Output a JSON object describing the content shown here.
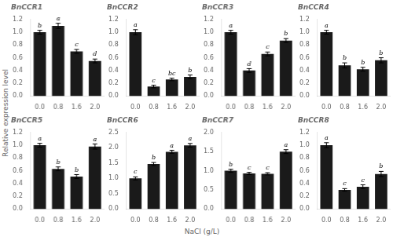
{
  "ylabel": "Relative expression level",
  "xlabel": "NaCl (g/L)",
  "chart_data": [
    {
      "type": "bar",
      "title": "BnCCR1",
      "categories": [
        "0.0",
        "0.8",
        "1.6",
        "2.0"
      ],
      "color": "#1a1a1a",
      "values": [
        1.0,
        1.1,
        0.7,
        0.55
      ],
      "errors": [
        0.03,
        0.04,
        0.03,
        0.03
      ],
      "annotations": [
        "b",
        "a",
        "c",
        "d"
      ],
      "ylim": [
        0,
        1.2
      ],
      "yticks": [
        {
          "value": 0,
          "label": "0.0"
        },
        0.2,
        0.4,
        0.6,
        0.8,
        {
          "value": 1,
          "label": "1.0"
        },
        1.2
      ],
      "grid": false
    },
    {
      "type": "bar",
      "title": "BnCCR2",
      "categories": [
        "0.0",
        "0.8",
        "1.6",
        "2.0"
      ],
      "color": "#1a1a1a",
      "values": [
        1.0,
        0.15,
        0.26,
        0.3
      ],
      "errors": [
        0.04,
        0.02,
        0.02,
        0.03
      ],
      "annotations": [
        "a",
        "c",
        "bc",
        "b"
      ],
      "ylim": [
        0,
        1.2
      ],
      "yticks": [
        {
          "value": 0,
          "label": "0.0"
        },
        0.2,
        0.4,
        0.6,
        0.8,
        {
          "value": 1,
          "label": "1.0"
        },
        1.2
      ],
      "grid": false
    },
    {
      "type": "bar",
      "title": "BnCCR3",
      "categories": [
        "0.0",
        "0.8",
        "1.6",
        "2.0"
      ],
      "color": "#1a1a1a",
      "values": [
        1.0,
        0.4,
        0.66,
        0.87
      ],
      "errors": [
        0.03,
        0.03,
        0.03,
        0.03
      ],
      "annotations": [
        "a",
        "d",
        "c",
        "b"
      ],
      "ylim": [
        0,
        1.2
      ],
      "yticks": [
        {
          "value": 0,
          "label": "0.0"
        },
        0.2,
        0.4,
        0.6,
        0.8,
        {
          "value": 1,
          "label": "1.0"
        },
        1.2
      ],
      "grid": false
    },
    {
      "type": "bar",
      "title": "BnCCR4",
      "categories": [
        "0.0",
        "0.8",
        "1.6",
        "2.0"
      ],
      "color": "#1a1a1a",
      "values": [
        1.0,
        0.48,
        0.42,
        0.56
      ],
      "errors": [
        0.03,
        0.04,
        0.03,
        0.04
      ],
      "annotations": [
        "a",
        "b",
        "b",
        "b"
      ],
      "ylim": [
        0,
        1.2
      ],
      "yticks": [
        {
          "value": 0,
          "label": "0.0"
        },
        0.2,
        0.4,
        0.6,
        0.8,
        {
          "value": 1,
          "label": "1.0"
        },
        1.2
      ],
      "grid": false
    },
    {
      "type": "bar",
      "title": "BnCCR5",
      "categories": [
        "0.0",
        "0.8",
        "1.6",
        "2.0"
      ],
      "color": "#1a1a1a",
      "values": [
        1.0,
        0.63,
        0.51,
        0.98
      ],
      "errors": [
        0.03,
        0.03,
        0.03,
        0.04
      ],
      "annotations": [
        "a",
        "b",
        "b",
        "a"
      ],
      "ylim": [
        0,
        1.2
      ],
      "yticks": [
        {
          "value": 0,
          "label": "0.0"
        },
        0.2,
        0.4,
        0.6,
        0.8,
        {
          "value": 1,
          "label": "1.0"
        },
        1.2
      ],
      "grid": false
    },
    {
      "type": "bar",
      "title": "BnCCR6",
      "categories": [
        "0.0",
        "0.8",
        "1.6",
        "2.0"
      ],
      "color": "#1a1a1a",
      "values": [
        1.0,
        1.47,
        1.87,
        2.08
      ],
      "errors": [
        0.05,
        0.05,
        0.05,
        0.06
      ],
      "annotations": [
        "c",
        "b",
        "a",
        "a"
      ],
      "ylim": [
        0,
        2.5
      ],
      "yticks": [
        {
          "value": 0,
          "label": "0.0"
        },
        0.5,
        {
          "value": 1,
          "label": "1.0"
        },
        1.5,
        {
          "value": 2,
          "label": "2.0"
        },
        2.5
      ],
      "grid": false
    },
    {
      "type": "bar",
      "title": "BnCCR7",
      "categories": [
        "0.0",
        "0.8",
        "1.6",
        "2.0"
      ],
      "color": "#1a1a1a",
      "values": [
        1.0,
        0.93,
        0.92,
        1.5
      ],
      "errors": [
        0.04,
        0.03,
        0.03,
        0.05
      ],
      "annotations": [
        "b",
        "c",
        "c",
        "a"
      ],
      "ylim": [
        0,
        2.0
      ],
      "yticks": [
        {
          "value": 0,
          "label": "0.0"
        },
        0.5,
        {
          "value": 1,
          "label": "1.0"
        },
        1.5,
        {
          "value": 2,
          "label": "2.0"
        }
      ],
      "grid": false
    },
    {
      "type": "bar",
      "title": "BnCCR8",
      "categories": [
        "0.0",
        "0.8",
        "1.6",
        "2.0"
      ],
      "color": "#1a1a1a",
      "values": [
        1.0,
        0.3,
        0.35,
        0.55
      ],
      "errors": [
        0.04,
        0.02,
        0.03,
        0.04
      ],
      "annotations": [
        "a",
        "c",
        "c",
        "b"
      ],
      "ylim": [
        0,
        1.2
      ],
      "yticks": [
        {
          "value": 0,
          "label": "0.0"
        },
        0.2,
        0.4,
        0.6,
        0.8,
        {
          "value": 1,
          "label": "1.0"
        },
        1.2
      ],
      "grid": false
    }
  ]
}
